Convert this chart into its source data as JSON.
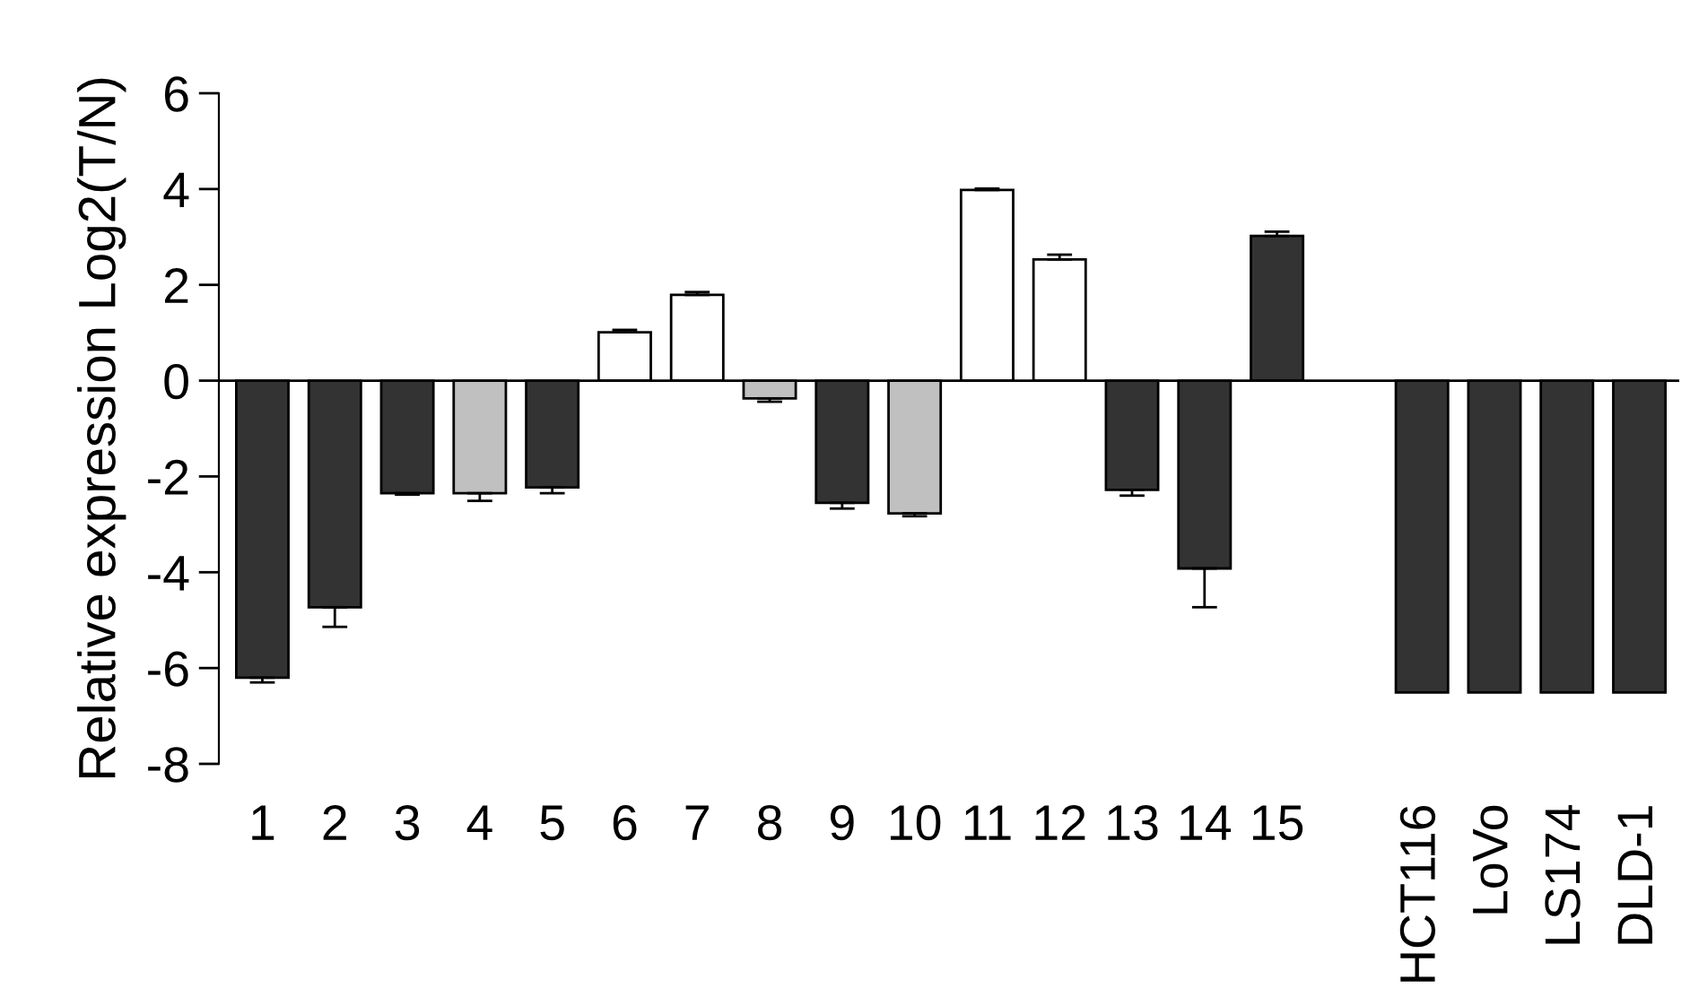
{
  "chart_data": {
    "type": "bar",
    "ylabel": "Relative expression Log2(T/N)",
    "categories": [
      "1",
      "2",
      "3",
      "4",
      "5",
      "6",
      "7",
      "8",
      "9",
      "10",
      "11",
      "12",
      "13",
      "14",
      "15",
      null,
      "HCT116",
      "LoVo",
      "LS174",
      "DLD-1"
    ],
    "values": [
      -6.2,
      -4.73,
      -2.35,
      -2.35,
      -2.23,
      1.01,
      1.79,
      -0.37,
      -2.55,
      -2.77,
      3.98,
      2.53,
      -2.28,
      -3.92,
      3.02,
      null,
      -6.51,
      -6.51,
      -6.51,
      -6.51
    ],
    "errors": [
      [
        -6.3,
        -6.2
      ],
      [
        -5.14,
        -4.73
      ],
      [
        -2.38,
        -2.35
      ],
      [
        -2.51,
        -2.35
      ],
      [
        -2.35,
        -2.23
      ],
      [
        1.01,
        1.06
      ],
      [
        1.79,
        1.85
      ],
      [
        -0.44,
        -0.37
      ],
      [
        -2.67,
        -2.55
      ],
      [
        -2.83,
        -2.77
      ],
      [
        3.98,
        4.01
      ],
      [
        2.53,
        2.63
      ],
      [
        -2.4,
        -2.28
      ],
      [
        -4.73,
        -3.92
      ],
      [
        3.02,
        3.11
      ],
      null,
      null,
      null,
      null,
      null
    ],
    "colors": [
      "#333333",
      "#333333",
      "#333333",
      "#c0c0c0",
      "#333333",
      "#ffffff",
      "#ffffff",
      "#c0c0c0",
      "#333333",
      "#c0c0c0",
      "#ffffff",
      "#ffffff",
      "#333333",
      "#333333",
      "#333333",
      null,
      "#333333",
      "#333333",
      "#333333",
      "#333333"
    ],
    "ylim": [
      -8,
      6
    ],
    "yticks": [
      -8,
      -6,
      -4,
      -2,
      0,
      2,
      4,
      6
    ],
    "ref_lines": [
      {
        "axis": "y",
        "value": 0,
        "color": "#000000"
      }
    ],
    "grid": false,
    "legend": false
  }
}
